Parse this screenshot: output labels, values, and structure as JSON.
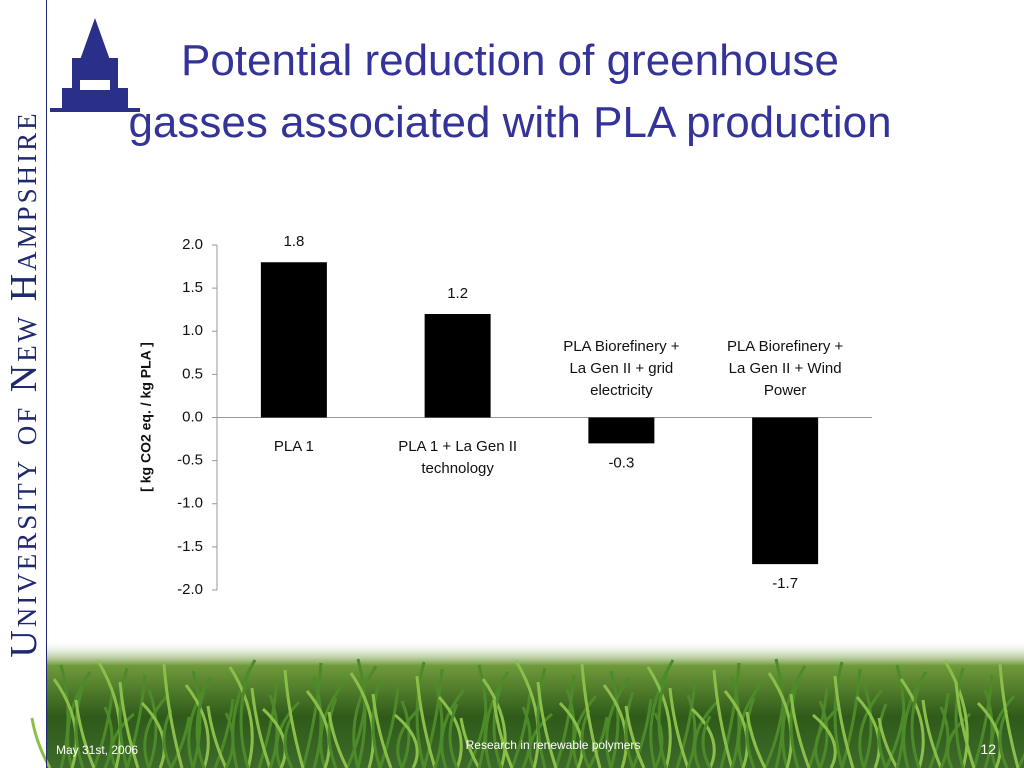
{
  "sidebar": {
    "text": "University of New Hampshire"
  },
  "chart_data": {
    "type": "bar",
    "title": "Potential reduction of greenhouse gasses associated with PLA production",
    "y_label": "[ kg CO2 eq. / kg PLA ]",
    "categories": [
      "PLA 1",
      "PLA 1 + La Gen II technology",
      "PLA Biorefinery + La Gen II + grid electricity",
      "PLA Biorefinery + La Gen II + Wind Power"
    ],
    "values": [
      1.8,
      1.2,
      -0.3,
      -1.7
    ],
    "color": "#000000",
    "ylim": [
      -2,
      2
    ],
    "yticks": [
      {
        "value": 2,
        "label": "2.0"
      },
      {
        "value": 1.5,
        "label": "1.5"
      },
      {
        "value": 1,
        "label": "1.0"
      },
      {
        "value": 0.5,
        "label": "0.5"
      },
      {
        "value": 0,
        "label": "0.0"
      },
      {
        "value": -0.5,
        "label": "-0.5"
      },
      {
        "value": -1,
        "label": "-1.0"
      },
      {
        "value": -1.5,
        "label": "-1.5"
      },
      {
        "value": -2,
        "label": "-2.0"
      }
    ],
    "grid": false
  },
  "footer": {
    "date": "May 31st, 2006",
    "center": "Research in renewable polymers",
    "page": "12"
  }
}
